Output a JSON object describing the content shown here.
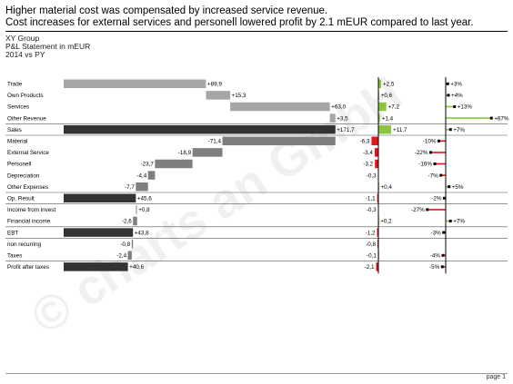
{
  "header": {
    "title_line1": "Higher material cost was compensated by increased service revenue.",
    "title_line2": "Cost increases for external services and personell lowered profit by 2.1 mEUR compared to last year.",
    "company": "XY Group",
    "statement": "P&L Statement in mEUR",
    "period": "2014 vs PY"
  },
  "watermark": "© charts an GmbH",
  "footer": {
    "page": "page 1"
  },
  "colors": {
    "revenue": "#a6a6a6",
    "cost": "#7f7f7f",
    "total": "#333333",
    "positive": "#8cc63f",
    "negative": "#e3141b"
  },
  "chart_data": {
    "type": "bar",
    "title": "P&L Statement in mEUR",
    "rows": [
      {
        "label": "Trade",
        "kind": "revenue",
        "value": 89.9,
        "value_label": "+89,9",
        "delta": 2.5,
        "delta_label": "+2,5",
        "pct": 3,
        "pct_label": "+3%"
      },
      {
        "label": "Own Products",
        "kind": "revenue",
        "value": 15.3,
        "value_label": "+15,3",
        "delta": 0.6,
        "delta_label": "+0,6",
        "pct": 4,
        "pct_label": "+4%"
      },
      {
        "label": "Services",
        "kind": "revenue",
        "value": 63.0,
        "value_label": "+63,0",
        "delta": 7.2,
        "delta_label": "+7,2",
        "pct": 13,
        "pct_label": "+13%"
      },
      {
        "label": "Other Revenue",
        "kind": "revenue",
        "value": 3.5,
        "value_label": "+3,5",
        "delta": 1.4,
        "delta_label": "+1,4",
        "pct": 67,
        "pct_label": "+67%"
      },
      {
        "label": "Sales",
        "kind": "total",
        "value": 171.7,
        "value_label": "+171,7",
        "delta": 11.7,
        "delta_label": "+11,7",
        "pct": 7,
        "pct_label": "+7%"
      },
      {
        "label": "Material",
        "kind": "cost",
        "value": -71.4,
        "value_label": "-71,4",
        "delta": -6.3,
        "delta_label": "-6,3",
        "pct": -10,
        "pct_label": "-10%"
      },
      {
        "label": "External Service",
        "kind": "cost",
        "value": -18.9,
        "value_label": "-18,9",
        "delta": -3.4,
        "delta_label": "-3,4",
        "pct": -22,
        "pct_label": "-22%"
      },
      {
        "label": "Personell",
        "kind": "cost",
        "value": -23.7,
        "value_label": "-23,7",
        "delta": -3.2,
        "delta_label": "-3,2",
        "pct": -16,
        "pct_label": "-16%"
      },
      {
        "label": "Depreciation",
        "kind": "cost",
        "value": -4.4,
        "value_label": "-4,4",
        "delta": -0.3,
        "delta_label": "-0,3",
        "pct": -7,
        "pct_label": "-7%"
      },
      {
        "label": "Other Expenses",
        "kind": "cost",
        "value": -7.7,
        "value_label": "-7,7",
        "delta": 0.4,
        "delta_label": "+0,4",
        "pct": 5,
        "pct_label": "+5%"
      },
      {
        "label": "Op. Result",
        "kind": "total",
        "value": 45.6,
        "value_label": "+45,6",
        "delta": -1.1,
        "delta_label": "-1,1",
        "pct": -2,
        "pct_label": "-2%"
      },
      {
        "label": "Income from invest",
        "kind": "revenue",
        "value": 0.8,
        "value_label": "+0,8",
        "delta": -0.3,
        "delta_label": "-0,3",
        "pct": -27,
        "pct_label": "-27%"
      },
      {
        "label": "Financial income",
        "kind": "cost",
        "value": -2.6,
        "value_label": "-2,6",
        "delta": 0.2,
        "delta_label": "+0,2",
        "pct": 7,
        "pct_label": "+7%"
      },
      {
        "label": "EBT",
        "kind": "total",
        "value": 43.8,
        "value_label": "+43,8",
        "delta": -1.2,
        "delta_label": "-1,2",
        "pct": -3,
        "pct_label": "-3%"
      },
      {
        "label": "non recurring",
        "kind": "cost",
        "value": -0.8,
        "value_label": "-0,8",
        "delta": -0.8,
        "delta_label": "-0,8",
        "pct": null,
        "pct_label": ""
      },
      {
        "label": "Taxes",
        "kind": "cost",
        "value": -2.4,
        "value_label": "-2,4",
        "delta": -0.1,
        "delta_label": "-0,1",
        "pct": -4,
        "pct_label": "-4%"
      },
      {
        "label": "Profit after taxes",
        "kind": "total",
        "value": 40.6,
        "value_label": "+40,6",
        "delta": -2.1,
        "delta_label": "-2,1",
        "pct": -5,
        "pct_label": "-5%"
      }
    ],
    "separators_after": [
      "Other Revenue",
      "Sales",
      "Other Expenses",
      "Op. Result",
      "Financial income",
      "EBT",
      "Taxes"
    ],
    "legend": "none",
    "grid": false
  }
}
